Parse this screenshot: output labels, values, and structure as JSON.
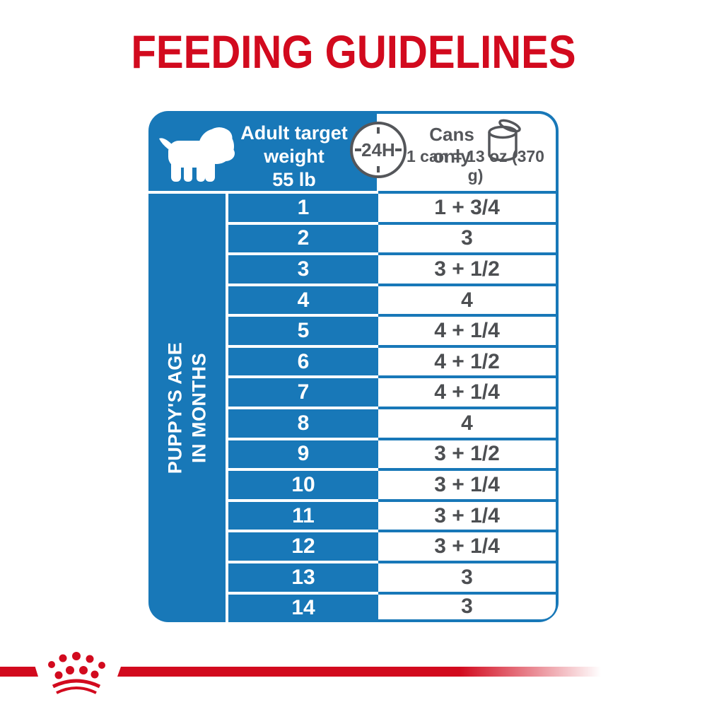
{
  "title": "FEEDING GUIDELINES",
  "colors": {
    "blue": "#1878b8",
    "red": "#d20a1e",
    "gray": "#54565a"
  },
  "header": {
    "weight_label": "Adult target\nweight\n55 lb",
    "clock_label": "24H",
    "cans_label": "Cans\nonly",
    "can_equiv": "1 can = 13 oz (370 g)"
  },
  "table": {
    "row_header": "PUPPY'S AGE\nIN MONTHS",
    "rows": [
      {
        "month": "1",
        "cans": "1 + 3/4"
      },
      {
        "month": "2",
        "cans": "3"
      },
      {
        "month": "3",
        "cans": "3 + 1/2"
      },
      {
        "month": "4",
        "cans": "4"
      },
      {
        "month": "5",
        "cans": "4 + 1/4"
      },
      {
        "month": "6",
        "cans": "4 + 1/2"
      },
      {
        "month": "7",
        "cans": "4 + 1/4"
      },
      {
        "month": "8",
        "cans": "4"
      },
      {
        "month": "9",
        "cans": "3 + 1/2"
      },
      {
        "month": "10",
        "cans": "3 + 1/4"
      },
      {
        "month": "11",
        "cans": "3 + 1/4"
      },
      {
        "month": "12",
        "cans": "3 + 1/4"
      },
      {
        "month": "13",
        "cans": "3"
      },
      {
        "month": "14",
        "cans": "3"
      }
    ]
  },
  "chart_data": {
    "type": "table",
    "title": "FEEDING GUIDELINES",
    "subtitle": "Adult target weight 55 lb — cans per 24H, cans only (1 can = 13 oz / 370 g)",
    "columns": [
      "Puppy's age in months",
      "Cans per day"
    ],
    "rows": [
      [
        "1",
        "1 + 3/4"
      ],
      [
        "2",
        "3"
      ],
      [
        "3",
        "3 + 1/2"
      ],
      [
        "4",
        "4"
      ],
      [
        "5",
        "4 + 1/4"
      ],
      [
        "6",
        "4 + 1/2"
      ],
      [
        "7",
        "4 + 1/4"
      ],
      [
        "8",
        "4"
      ],
      [
        "9",
        "3 + 1/2"
      ],
      [
        "10",
        "3 + 1/4"
      ],
      [
        "11",
        "3 + 1/4"
      ],
      [
        "12",
        "3 + 1/4"
      ],
      [
        "13",
        "3"
      ],
      [
        "14",
        "3"
      ]
    ]
  }
}
